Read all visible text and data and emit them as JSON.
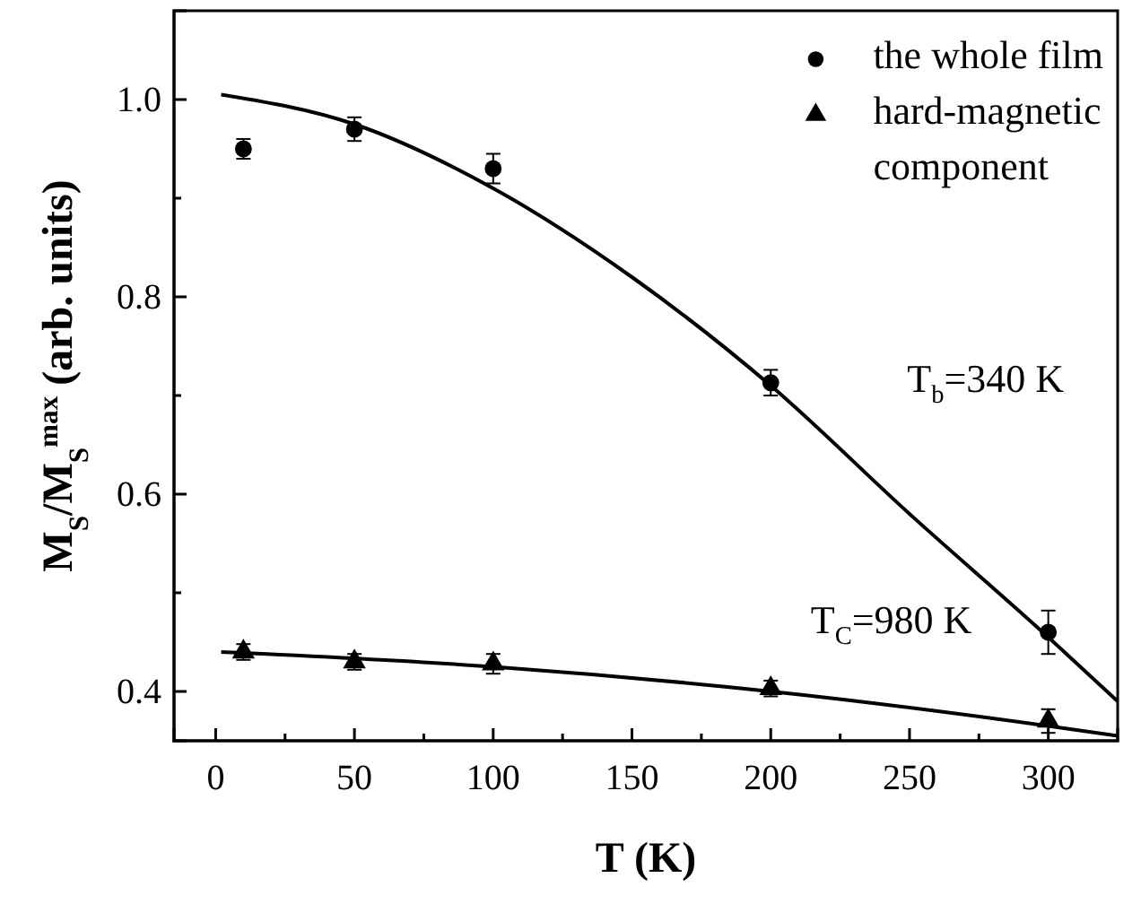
{
  "chart_data": {
    "type": "scatter",
    "xlabel": "T (K)",
    "ylabel": "M$_{S}$/M$_{S}$$^{max}$ (arb. units)",
    "xlim": [
      -15,
      325
    ],
    "xticks": [
      0,
      {
        "value": 25,
        "label": null
      },
      50,
      {
        "value": 75,
        "label": null
      },
      100,
      {
        "value": 125,
        "label": null
      },
      150,
      {
        "value": 175,
        "label": null
      },
      200,
      {
        "value": 225,
        "label": null
      },
      250,
      {
        "value": 275,
        "label": null
      },
      300
    ],
    "ylim": [
      0.35,
      1.09
    ],
    "yticks": [
      0.4,
      {
        "value": 0.5,
        "label": null
      },
      0.6,
      {
        "value": 0.7,
        "label": null
      },
      0.8,
      {
        "value": 0.9,
        "label": null
      },
      {
        "value": 1.0,
        "label": "1.0"
      }
    ],
    "legend": "top right",
    "grid": false,
    "series": [
      {
        "name": "the whole film",
        "marker": "circle",
        "color": "#000000",
        "x": [
          10,
          50,
          100,
          200,
          300
        ],
        "values": [
          0.95,
          0.97,
          0.93,
          0.713,
          0.46
        ],
        "errors": [
          0.01,
          0.012,
          0.015,
          0.013,
          0.022
        ]
      },
      {
        "name": "hard-magnetic component",
        "marker": "triangle",
        "color": "#000000",
        "x": [
          10,
          50,
          100,
          200,
          300
        ],
        "values": [
          0.44,
          0.43,
          0.428,
          0.403,
          0.37
        ],
        "errors": [
          0.008,
          0.008,
          0.01,
          0.008,
          0.012
        ]
      },
      {
        "type": "line",
        "marker": "none",
        "color": "#000000",
        "x": [
          2,
          50,
          100,
          150,
          200,
          250,
          300,
          325
        ],
        "values": [
          1.005,
          0.975,
          0.91,
          0.82,
          0.71,
          0.58,
          0.455,
          0.39
        ]
      },
      {
        "type": "line",
        "marker": "none",
        "color": "#000000",
        "x": [
          2,
          100,
          200,
          300,
          325
        ],
        "values": [
          0.44,
          0.425,
          0.4,
          0.365,
          0.355
        ]
      }
    ],
    "annotations": [
      "T$_{b}$=340 K",
      "T$_{C}$=980 K"
    ]
  }
}
